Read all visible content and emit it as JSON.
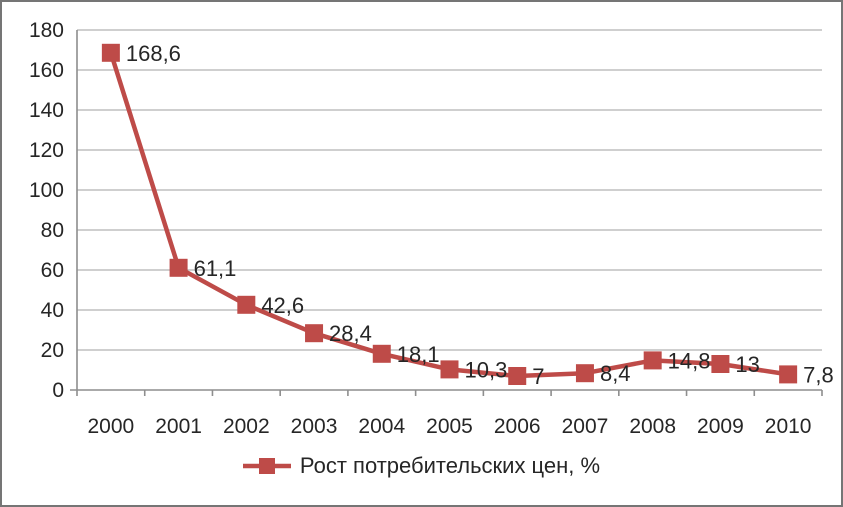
{
  "chart_data": {
    "type": "line",
    "title": "",
    "categories": [
      "2000",
      "2001",
      "2002",
      "2003",
      "2004",
      "2005",
      "2006",
      "2007",
      "2008",
      "2009",
      "2010"
    ],
    "series": [
      {
        "name": "Рост потребительских цен, %",
        "color": "#BE4B48",
        "values": [
          168.6,
          61.1,
          42.6,
          28.4,
          18.1,
          10.3,
          7,
          8.4,
          14.8,
          13,
          7.8
        ]
      }
    ],
    "data_labels": [
      "168,6",
      "61,1",
      "42,6",
      "28,4",
      "18,1",
      "10,3",
      "7",
      "8,4",
      "14,8",
      "13",
      "7,8"
    ],
    "ylim": [
      0,
      180
    ],
    "yticks": [
      "0",
      "20",
      "40",
      "60",
      "80",
      "100",
      "120",
      "140",
      "160",
      "180"
    ],
    "grid": true,
    "legend_position": "bottom"
  },
  "colors": {
    "series": "#BE4B48",
    "grid": "#BFBFBF",
    "axis": "#8E8E8E",
    "text": "#262626",
    "border": "#757575"
  }
}
